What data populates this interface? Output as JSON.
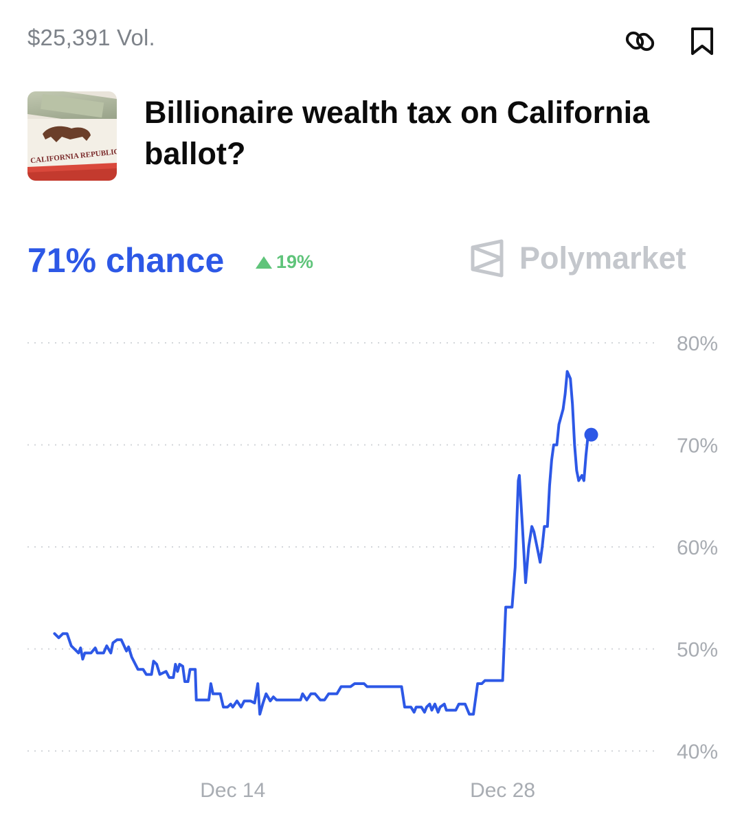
{
  "header": {
    "volume": "$25,391 Vol.",
    "icons": [
      "link-icon",
      "bookmark-icon"
    ]
  },
  "market": {
    "title": "Billionaire wealth tax on California ballot?",
    "thumbnail_text": "CALIFORNIA REPUBLIC"
  },
  "summary": {
    "chance": "71% chance",
    "change": "19%",
    "change_direction": "up",
    "brand": "Polymarket"
  },
  "colors": {
    "line": "#2d58e6",
    "up": "#5fc47a",
    "muted": "#a8acb2"
  },
  "chart_data": {
    "type": "line",
    "title": "",
    "xlabel": "",
    "ylabel": "",
    "x_ticks": [
      "Dec 14",
      "Dec 28"
    ],
    "y_ticks": [
      "80%",
      "70%",
      "60%",
      "50%",
      "40%"
    ],
    "ylim": [
      40,
      80
    ],
    "grid": "horizontal dotted",
    "series": [
      {
        "values": [
          [
            2.6,
            51.5
          ],
          [
            3.0,
            51.1
          ],
          [
            3.4,
            51.5
          ],
          [
            3.8,
            51.5
          ],
          [
            4.2,
            50.3
          ],
          [
            4.6,
            49.9
          ],
          [
            4.9,
            49.6
          ],
          [
            5.1,
            50.1
          ],
          [
            5.3,
            49.0
          ],
          [
            5.5,
            49.6
          ],
          [
            6.1,
            49.6
          ],
          [
            6.5,
            50.1
          ],
          [
            6.7,
            49.6
          ],
          [
            7.3,
            49.6
          ],
          [
            7.6,
            50.3
          ],
          [
            8.0,
            49.6
          ],
          [
            8.2,
            50.6
          ],
          [
            8.6,
            50.9
          ],
          [
            9.0,
            50.9
          ],
          [
            9.5,
            49.8
          ],
          [
            9.7,
            50.2
          ],
          [
            10.0,
            49.2
          ],
          [
            10.6,
            48.0
          ],
          [
            11.1,
            48.0
          ],
          [
            11.4,
            47.5
          ],
          [
            11.9,
            47.5
          ],
          [
            12.1,
            48.8
          ],
          [
            12.4,
            48.5
          ],
          [
            12.7,
            47.5
          ],
          [
            13.3,
            47.8
          ],
          [
            13.6,
            47.2
          ],
          [
            14.0,
            47.2
          ],
          [
            14.2,
            48.5
          ],
          [
            14.4,
            47.8
          ],
          [
            14.6,
            48.5
          ],
          [
            14.9,
            48.3
          ],
          [
            15.1,
            46.8
          ],
          [
            15.4,
            46.8
          ],
          [
            15.6,
            48.0
          ],
          [
            16.1,
            48.0
          ],
          [
            16.2,
            45.0
          ],
          [
            16.5,
            45.0
          ],
          [
            17.4,
            45.0
          ],
          [
            17.6,
            46.6
          ],
          [
            17.8,
            45.6
          ],
          [
            18.5,
            45.6
          ],
          [
            18.8,
            44.3
          ],
          [
            19.2,
            44.3
          ],
          [
            19.5,
            44.6
          ],
          [
            19.7,
            44.3
          ],
          [
            20.1,
            44.9
          ],
          [
            20.5,
            44.3
          ],
          [
            20.8,
            44.9
          ],
          [
            21.4,
            44.9
          ],
          [
            21.8,
            44.7
          ],
          [
            22.1,
            46.6
          ],
          [
            22.3,
            43.6
          ],
          [
            22.6,
            44.7
          ],
          [
            22.9,
            45.6
          ],
          [
            23.3,
            44.9
          ],
          [
            23.6,
            45.3
          ],
          [
            23.9,
            45.0
          ],
          [
            24.9,
            45.0
          ],
          [
            25.4,
            45.0
          ],
          [
            26.2,
            45.0
          ],
          [
            26.4,
            45.6
          ],
          [
            26.8,
            45.0
          ],
          [
            27.2,
            45.6
          ],
          [
            27.6,
            45.6
          ],
          [
            28.1,
            45.0
          ],
          [
            28.5,
            45.0
          ],
          [
            28.9,
            45.6
          ],
          [
            29.7,
            45.6
          ],
          [
            30.1,
            46.3
          ],
          [
            31.0,
            46.3
          ],
          [
            31.4,
            46.6
          ],
          [
            32.3,
            46.6
          ],
          [
            32.6,
            46.3
          ],
          [
            35.9,
            46.3
          ],
          [
            36.2,
            44.3
          ],
          [
            36.8,
            44.3
          ],
          [
            37.1,
            43.8
          ],
          [
            37.3,
            44.3
          ],
          [
            37.8,
            44.3
          ],
          [
            38.1,
            43.8
          ],
          [
            38.3,
            44.3
          ],
          [
            38.6,
            44.6
          ],
          [
            38.8,
            44.0
          ],
          [
            39.1,
            44.6
          ],
          [
            39.4,
            43.8
          ],
          [
            39.6,
            44.3
          ],
          [
            40.0,
            44.6
          ],
          [
            40.2,
            44.0
          ],
          [
            41.1,
            44.0
          ],
          [
            41.4,
            44.6
          ],
          [
            42.0,
            44.6
          ],
          [
            42.4,
            43.6
          ],
          [
            42.8,
            43.6
          ],
          [
            43.2,
            46.6
          ],
          [
            43.6,
            46.6
          ],
          [
            43.9,
            46.9
          ],
          [
            45.6,
            46.9
          ],
          [
            45.9,
            54.1
          ],
          [
            46.2,
            54.1
          ],
          [
            46.5,
            54.1
          ],
          [
            46.8,
            58.0
          ],
          [
            47.1,
            66.5
          ],
          [
            47.2,
            67.0
          ],
          [
            47.5,
            62.0
          ],
          [
            47.8,
            56.5
          ],
          [
            48.1,
            60.0
          ],
          [
            48.4,
            62.0
          ],
          [
            48.6,
            61.5
          ],
          [
            49.0,
            59.5
          ],
          [
            49.2,
            58.5
          ],
          [
            49.4,
            60.0
          ],
          [
            49.6,
            62.0
          ],
          [
            49.9,
            62.0
          ],
          [
            50.1,
            66.0
          ],
          [
            50.3,
            68.5
          ],
          [
            50.5,
            70.0
          ],
          [
            50.8,
            70.0
          ],
          [
            51.0,
            72.0
          ],
          [
            51.4,
            73.5
          ],
          [
            51.6,
            75.0
          ],
          [
            51.8,
            77.2
          ],
          [
            52.1,
            76.5
          ],
          [
            52.3,
            74.0
          ],
          [
            52.5,
            70.0
          ],
          [
            52.7,
            67.5
          ],
          [
            52.9,
            66.5
          ],
          [
            53.2,
            67.0
          ],
          [
            53.4,
            66.5
          ],
          [
            53.6,
            69.0
          ],
          [
            53.8,
            71.0
          ],
          [
            54.0,
            71.0
          ]
        ]
      }
    ],
    "current_point": [
      54.1,
      71.0
    ]
  }
}
